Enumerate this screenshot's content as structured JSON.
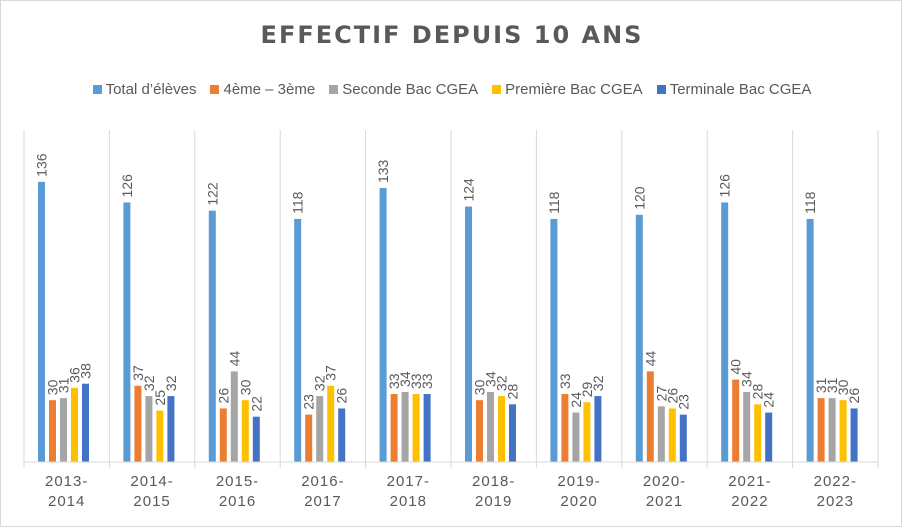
{
  "chart_data": {
    "type": "bar",
    "title": "EFFECTIF DEPUIS 10 ANS",
    "categories": [
      [
        "2013-",
        "2014"
      ],
      [
        "2014-",
        "2015"
      ],
      [
        "2015-",
        "2016"
      ],
      [
        "2016-",
        "2017"
      ],
      [
        "2017-",
        "2018"
      ],
      [
        "2018-",
        "2019"
      ],
      [
        "2019-",
        "2020"
      ],
      [
        "2020-",
        "2021"
      ],
      [
        "2021-",
        "2022"
      ],
      [
        "2022-",
        "2023"
      ]
    ],
    "series": [
      {
        "name": "Total d’élèves",
        "color": "#5b9bd5",
        "values": [
          136,
          126,
          122,
          118,
          133,
          124,
          118,
          120,
          126,
          118
        ]
      },
      {
        "name": "4ème – 3ème",
        "color": "#ed7d31",
        "values": [
          30,
          37,
          26,
          23,
          33,
          30,
          33,
          44,
          40,
          31
        ]
      },
      {
        "name": "Seconde Bac CGEA",
        "color": "#a5a5a5",
        "values": [
          31,
          32,
          44,
          32,
          34,
          34,
          24,
          27,
          34,
          31
        ]
      },
      {
        "name": "Première Bac CGEA",
        "color": "#ffc000",
        "values": [
          36,
          25,
          30,
          37,
          33,
          32,
          29,
          26,
          28,
          30
        ]
      },
      {
        "name": "Terminale Bac CGEA",
        "color": "#4472c4",
        "values": [
          38,
          32,
          22,
          26,
          33,
          28,
          32,
          23,
          24,
          26
        ]
      }
    ],
    "ylim": [
      0,
      140
    ],
    "grid": false,
    "legend_position": "top",
    "data_labels": true
  }
}
